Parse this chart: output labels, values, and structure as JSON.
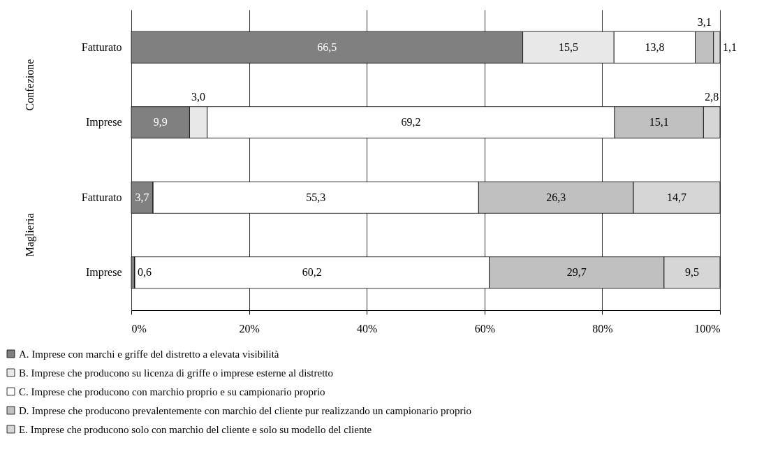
{
  "chart_data": {
    "type": "bar",
    "orientation": "horizontal",
    "stacked": true,
    "categories": [
      "Fatturato",
      "Imprese",
      "Fatturato",
      "Imprese"
    ],
    "annotations": [
      "Confezione",
      "Maglieria"
    ],
    "xlim": [
      0,
      100
    ],
    "xticks": [
      {
        "value": 0,
        "label": "0%"
      },
      {
        "value": 20,
        "label": "20%"
      },
      {
        "value": 40,
        "label": "40%"
      },
      {
        "value": 60,
        "label": "60%"
      },
      {
        "value": 80,
        "label": "80%"
      },
      {
        "value": 100,
        "label": "100%"
      }
    ],
    "grid": "x",
    "legend": "bottom",
    "series": [
      {
        "name": "A. Imprese con marchi e griffe del distretto a elevata visibilità",
        "color": "#808080",
        "values": [
          66.5,
          9.9,
          3.7,
          0.6
        ],
        "value_labels": [
          "66,5",
          "9,9",
          "3,7",
          "0,6"
        ]
      },
      {
        "name": "B. Imprese che producono su licenza di griffe o imprese esterne al distretto",
        "color": "#e8e8e8",
        "values": [
          15.5,
          3.0,
          0,
          0
        ],
        "value_labels": [
          "15,5",
          "3,0",
          null,
          null
        ]
      },
      {
        "name": "C. Imprese che producono con marchio proprio e su campionario proprio",
        "color": "#ffffff",
        "values": [
          13.8,
          69.2,
          55.3,
          60.2
        ],
        "value_labels": [
          "13,8",
          "69,2",
          "55,3",
          "60,2"
        ]
      },
      {
        "name": "D. Imprese che producono prevalentemente con marchio del cliente pur realizzando un campionario proprio",
        "color": "#c0c0c0",
        "values": [
          3.1,
          15.1,
          26.3,
          29.7
        ],
        "value_labels": [
          "3,1",
          "15,1",
          "26,3",
          "29,7"
        ]
      },
      {
        "name": "E. Imprese che producono solo con marchio del cliente e solo su modello del cliente",
        "color": "#d6d6d6",
        "values": [
          1.1,
          2.8,
          14.7,
          9.5
        ],
        "value_labels": [
          "1,1",
          "2,8",
          "14,7",
          "9,5"
        ]
      }
    ]
  }
}
